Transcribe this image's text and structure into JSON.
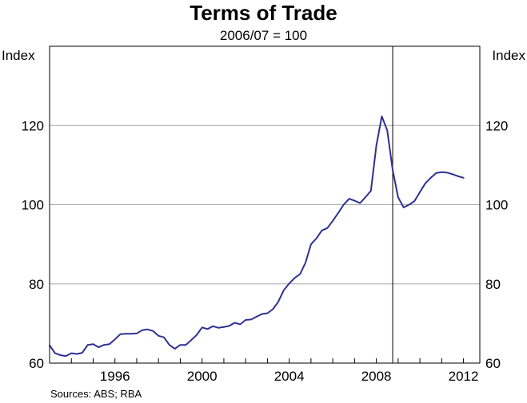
{
  "chart_data": {
    "type": "line",
    "title": "Terms of Trade",
    "subtitle": "2006/07 = 100",
    "y_unit_left": "Index",
    "y_unit_right": "Index",
    "ylim": [
      60,
      140
    ],
    "yticks": [
      60,
      80,
      100,
      120
    ],
    "xlim": [
      1993.0,
      2012.75
    ],
    "xticks": [
      {
        "value": 1996,
        "label": "1996"
      },
      {
        "value": 2000,
        "label": "2000"
      },
      {
        "value": 2004,
        "label": "2004"
      },
      {
        "value": 2008,
        "label": "2008"
      },
      {
        "value": 2012,
        "label": "2012"
      }
    ],
    "grid": {
      "horizontal": true,
      "vertical": false
    },
    "vertical_marker": 2008.75,
    "source": "Sources: ABS; RBA",
    "line_color": "#2e3192",
    "series": [
      {
        "name": "",
        "x": [
          1993.0,
          1993.25,
          1993.5,
          1993.75,
          1994.0,
          1994.25,
          1994.5,
          1994.75,
          1995.0,
          1995.25,
          1995.5,
          1995.75,
          1996.0,
          1996.25,
          1996.5,
          1996.75,
          1997.0,
          1997.25,
          1997.5,
          1997.75,
          1998.0,
          1998.25,
          1998.5,
          1998.75,
          1999.0,
          1999.25,
          1999.5,
          1999.75,
          2000.0,
          2000.25,
          2000.5,
          2000.75,
          2001.0,
          2001.25,
          2001.5,
          2001.75,
          2002.0,
          2002.25,
          2002.5,
          2002.75,
          2003.0,
          2003.25,
          2003.5,
          2003.75,
          2004.0,
          2004.25,
          2004.5,
          2004.75,
          2005.0,
          2005.25,
          2005.5,
          2005.75,
          2006.0,
          2006.25,
          2006.5,
          2006.75,
          2007.0,
          2007.25,
          2007.5,
          2007.75,
          2008.0,
          2008.25,
          2008.5,
          2008.75,
          2009.0,
          2009.25,
          2009.5,
          2009.75,
          2010.0,
          2010.25,
          2010.5,
          2010.75,
          2011.0,
          2011.25,
          2011.5,
          2011.75,
          2012.0
        ],
        "values": [
          64.5,
          62.5,
          62.0,
          61.8,
          62.5,
          62.3,
          62.6,
          64.6,
          64.8,
          64.0,
          64.6,
          64.8,
          66.0,
          67.3,
          67.4,
          67.4,
          67.5,
          68.3,
          68.5,
          68.1,
          66.9,
          66.5,
          64.6,
          63.6,
          64.6,
          64.6,
          65.8,
          67.1,
          69.0,
          68.6,
          69.3,
          68.9,
          69.1,
          69.4,
          70.2,
          69.8,
          70.9,
          71.0,
          71.7,
          72.4,
          72.6,
          73.6,
          75.5,
          78.4,
          80.1,
          81.5,
          82.5,
          85.4,
          90.0,
          91.5,
          93.5,
          94.1,
          95.9,
          97.9,
          100.0,
          101.5,
          101.0,
          100.4,
          101.9,
          103.5,
          114.9,
          122.3,
          118.8,
          108.8,
          101.9,
          99.3,
          100.0,
          100.9,
          103.2,
          105.4,
          106.8,
          108.0,
          108.2,
          108.1,
          107.7,
          107.2,
          106.8
        ]
      }
    ]
  }
}
